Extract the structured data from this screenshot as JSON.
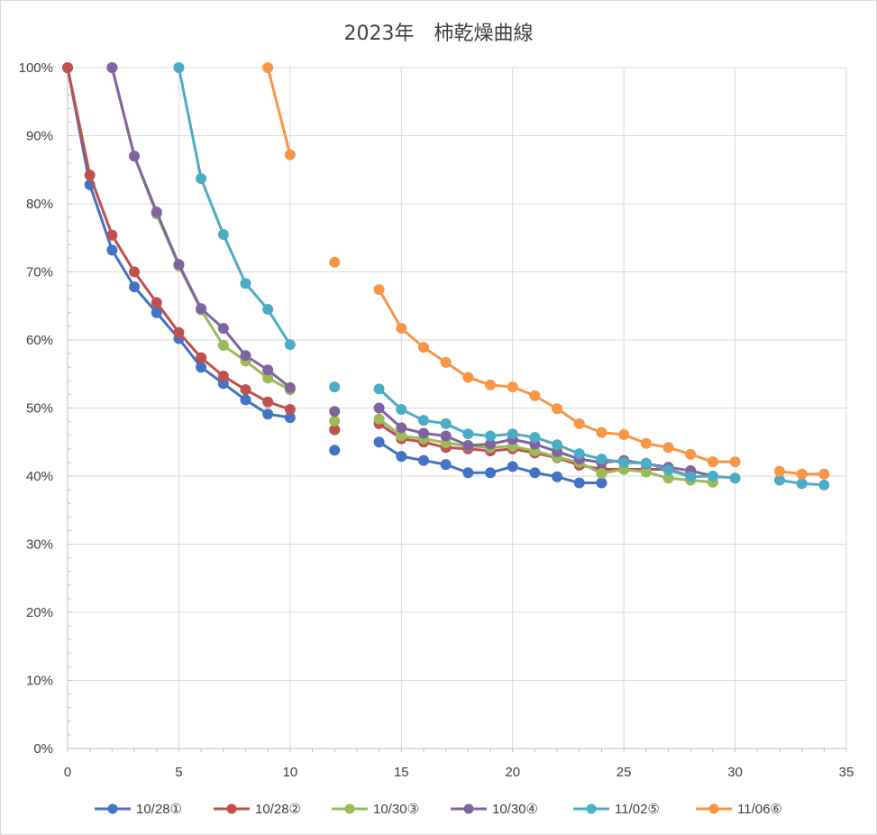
{
  "chart_data": {
    "type": "scatter",
    "title": "2023年　柿乾燥曲線",
    "xlabel": "",
    "ylabel": "",
    "xlim": [
      0,
      35
    ],
    "ylim": [
      0,
      1
    ],
    "x_ticks": [
      0,
      5,
      10,
      15,
      20,
      25,
      30,
      35
    ],
    "y_ticks": [
      0,
      0.1,
      0.2,
      0.3,
      0.4,
      0.5,
      0.6,
      0.7,
      0.8,
      0.9,
      1.0
    ],
    "x_tick_labels": [
      "0",
      "5",
      "10",
      "15",
      "20",
      "25",
      "30",
      "35"
    ],
    "y_tick_labels": [
      "0%",
      "10%",
      "20%",
      "30%",
      "40%",
      "50%",
      "60%",
      "70%",
      "80%",
      "90%",
      "100%"
    ],
    "grid": true,
    "legend_position": "bottom",
    "series": [
      {
        "name": "10/28①",
        "color": "#4472C4",
        "x": [
          0,
          1,
          2,
          3,
          4,
          5,
          6,
          7,
          8,
          9,
          10,
          12,
          14,
          15,
          16,
          17,
          18,
          19,
          20,
          21,
          22,
          23,
          24
        ],
        "y": [
          1.0,
          0.828,
          0.732,
          0.678,
          0.64,
          0.602,
          0.56,
          0.536,
          0.512,
          0.491,
          0.486,
          0.438,
          0.45,
          0.429,
          0.423,
          0.417,
          0.405,
          0.405,
          0.414,
          0.405,
          0.399,
          0.39,
          0.39
        ]
      },
      {
        "name": "10/28②",
        "color": "#C0504D",
        "x": [
          0,
          1,
          2,
          3,
          4,
          5,
          6,
          7,
          8,
          9,
          10,
          12,
          14,
          15,
          16,
          17,
          18,
          19,
          20,
          21,
          22,
          23,
          24,
          25,
          26,
          27,
          28
        ],
        "y": [
          1.0,
          0.842,
          0.754,
          0.7,
          0.655,
          0.611,
          0.574,
          0.547,
          0.527,
          0.509,
          0.498,
          0.468,
          0.477,
          0.455,
          0.45,
          0.442,
          0.44,
          0.437,
          0.44,
          0.434,
          0.427,
          0.416,
          0.41,
          0.41,
          0.41,
          0.41,
          0.4
        ]
      },
      {
        "name": "10/30③",
        "color": "#9BBB59",
        "x": [
          2,
          3,
          4,
          5,
          6,
          7,
          8,
          9,
          10,
          12,
          14,
          15,
          16,
          17,
          18,
          19,
          20,
          21,
          22,
          23,
          24,
          25,
          26,
          27,
          28,
          29
        ],
        "y": [
          1.0,
          0.87,
          0.785,
          0.709,
          0.644,
          0.592,
          0.569,
          0.544,
          0.527,
          0.481,
          0.484,
          0.459,
          0.455,
          0.449,
          0.444,
          0.442,
          0.444,
          0.437,
          0.428,
          0.42,
          0.404,
          0.41,
          0.406,
          0.397,
          0.394,
          0.391
        ]
      },
      {
        "name": "10/30④",
        "color": "#8064A2",
        "x": [
          2,
          3,
          4,
          5,
          6,
          7,
          8,
          9,
          10,
          12,
          14,
          15,
          16,
          17,
          18,
          19,
          20,
          21,
          22,
          23,
          24,
          25,
          26,
          27,
          28,
          29
        ],
        "y": [
          1.0,
          0.87,
          0.788,
          0.711,
          0.646,
          0.617,
          0.577,
          0.556,
          0.53,
          0.495,
          0.5,
          0.471,
          0.463,
          0.459,
          0.445,
          0.447,
          0.454,
          0.447,
          0.436,
          0.425,
          0.42,
          0.423,
          0.418,
          0.413,
          0.408,
          0.4
        ]
      },
      {
        "name": "11/02⑤",
        "color": "#4BACC6",
        "x": [
          5,
          6,
          7,
          8,
          9,
          10,
          12,
          14,
          15,
          16,
          17,
          18,
          19,
          20,
          21,
          22,
          23,
          24,
          25,
          26,
          27,
          28,
          29,
          30,
          32,
          33,
          34
        ],
        "y": [
          1.0,
          0.837,
          0.755,
          0.683,
          0.645,
          0.593,
          0.531,
          0.528,
          0.498,
          0.482,
          0.477,
          0.462,
          0.459,
          0.462,
          0.457,
          0.446,
          0.433,
          0.425,
          0.42,
          0.419,
          0.409,
          0.399,
          0.4,
          0.397,
          0.394,
          0.389,
          0.387
        ]
      },
      {
        "name": "11/06⑥",
        "color": "#F79646",
        "x": [
          9,
          10,
          12,
          14,
          15,
          16,
          17,
          18,
          19,
          20,
          21,
          22,
          23,
          24,
          25,
          26,
          27,
          28,
          29,
          30,
          32,
          33,
          34
        ],
        "y": [
          1.0,
          0.872,
          0.714,
          0.674,
          0.617,
          0.589,
          0.567,
          0.545,
          0.534,
          0.531,
          0.518,
          0.499,
          0.477,
          0.464,
          0.461,
          0.448,
          0.442,
          0.432,
          0.421,
          0.421,
          0.407,
          0.403,
          0.403
        ]
      }
    ]
  }
}
